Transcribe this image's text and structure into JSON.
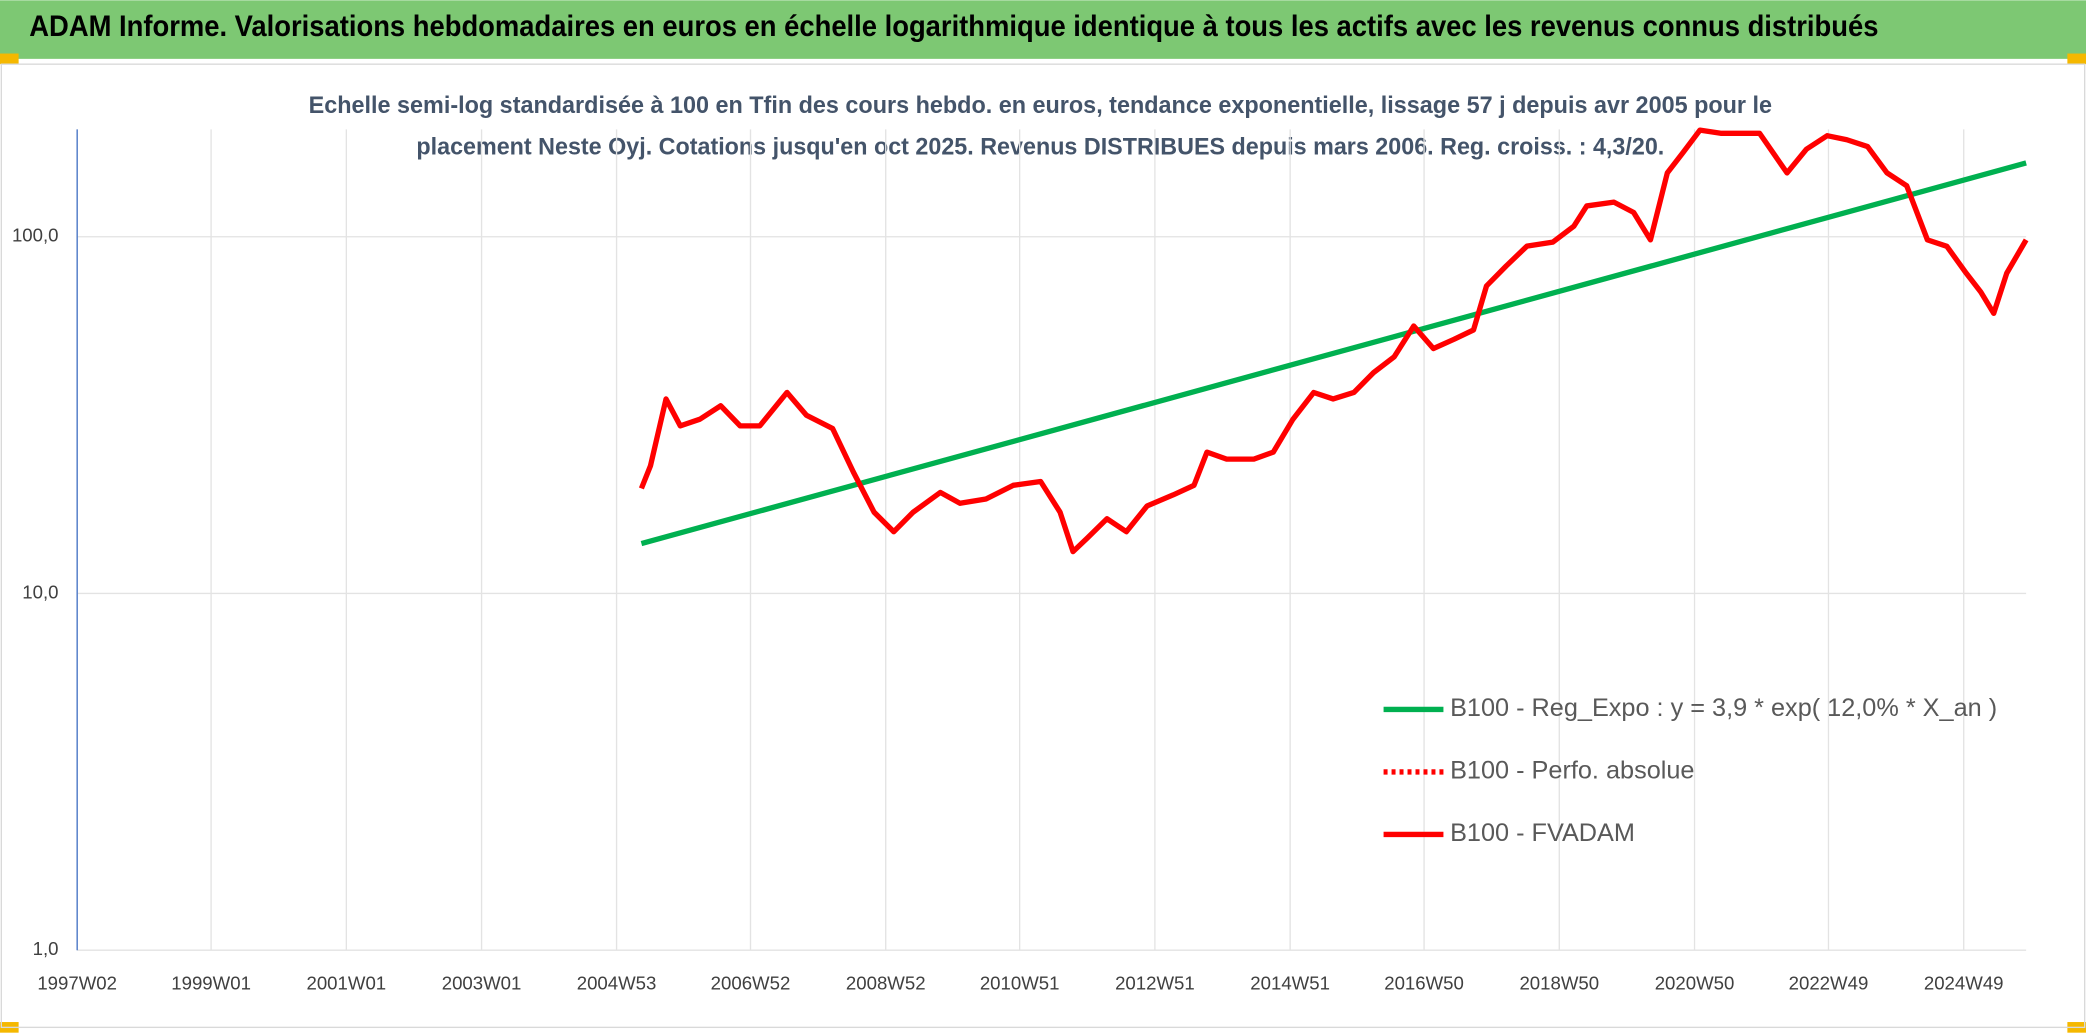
{
  "chart_data": {
    "type": "line",
    "title": "ADAM Informe. Valorisations hebdomadaires en euros en échelle logarithmique identique à tous les actifs avec les revenus connus distribués",
    "subtitle": [
      "Echelle semi-log standardisée à 100 en Tfin des cours hebdo. en euros, tendance exponentielle, lissage 57 j depuis avr 2005 pour le",
      "placement Neste Oyj. Cotations jusqu'en oct 2025. Revenus DISTRIBUES depuis mars 2006. Reg. croiss. : 4,3/20."
    ],
    "log_scale": true,
    "grid": true,
    "ylim": [
      1,
      200
    ],
    "yticks": [
      {
        "value": 1,
        "label": "1,0"
      },
      {
        "value": 10,
        "label": "10,0"
      },
      {
        "value": 100,
        "label": "100,0"
      }
    ],
    "xlim": [
      "1997W02",
      "2025W45"
    ],
    "xticks": [
      "1997W02",
      "1999W01",
      "2001W01",
      "2003W01",
      "2004W53",
      "2006W52",
      "2008W52",
      "2010W51",
      "2012W51",
      "2014W51",
      "2016W50",
      "2018W50",
      "2020W50",
      "2022W49",
      "2024W49"
    ],
    "x": [
      "2005W20",
      "2005W27",
      "2005W39",
      "2005W50",
      "2006W13",
      "2006W29",
      "2006W44",
      "2007W07",
      "2007W28",
      "2007W43",
      "2008W11",
      "2008W27",
      "2008W43",
      "2009W06",
      "2009W21",
      "2009W42",
      "2010W05",
      "2010W25",
      "2010W46",
      "2011W15",
      "2011W30",
      "2011W40",
      "2011W51",
      "2012W14",
      "2012W29",
      "2012W45",
      "2013W13",
      "2013W29",
      "2013W39",
      "2014W02",
      "2014W23",
      "2014W38",
      "2015W01",
      "2015W17",
      "2015W32",
      "2015W48",
      "2016W11",
      "2016W27",
      "2016W42",
      "2017W05",
      "2017W21",
      "2017W36",
      "2017W46",
      "2018W09",
      "2018W25",
      "2018W45",
      "2019W09",
      "2019W19",
      "2019W40",
      "2020W03",
      "2020W16",
      "2020W29",
      "2020W41",
      "2021W02",
      "2021W18",
      "2021W33",
      "2021W48",
      "2022W17",
      "2022W32",
      "2022W48",
      "2023W11",
      "2023W27",
      "2023W42",
      "2024W05",
      "2024W21",
      "2024W36",
      "2024W51",
      "2025W10",
      "2025W20",
      "2025W30",
      "2025W45"
    ],
    "legend_position": "lower right",
    "series": [
      {
        "name": "B100 - Reg_Expo : y = 3,9 * exp( 12,0% *  X_an )",
        "color": "#00b050",
        "style": "solid",
        "x": [
          "2005W20",
          "2025W45"
        ],
        "values": [
          13.8,
          161
        ]
      },
      {
        "name": "B100 - Perfo. absolue",
        "color": "#ff0000",
        "style": "dotted"
      },
      {
        "name": "B100 - FVADAM",
        "color": "#ff0000",
        "style": "solid",
        "values": [
          19.7,
          22.8,
          35.1,
          29.5,
          30.8,
          33.6,
          29.5,
          29.5,
          36.6,
          31.6,
          29,
          21.9,
          16.9,
          14.9,
          16.9,
          19.2,
          17.9,
          18.4,
          20.1,
          20.6,
          16.9,
          13.1,
          14.3,
          16.2,
          14.9,
          17.6,
          18.9,
          20.1,
          24.9,
          23.8,
          23.8,
          24.9,
          30.8,
          36.6,
          35.1,
          36.6,
          41.6,
          46.1,
          56.2,
          48.6,
          51.6,
          54.8,
          72.8,
          82.8,
          94.1,
          96.6,
          107,
          122,
          125,
          117,
          98,
          151,
          172,
          199,
          195,
          195,
          195,
          151,
          176,
          192,
          187,
          179,
          151,
          139,
          98,
          94,
          79,
          70,
          61,
          79,
          98
        ]
      }
    ]
  }
}
